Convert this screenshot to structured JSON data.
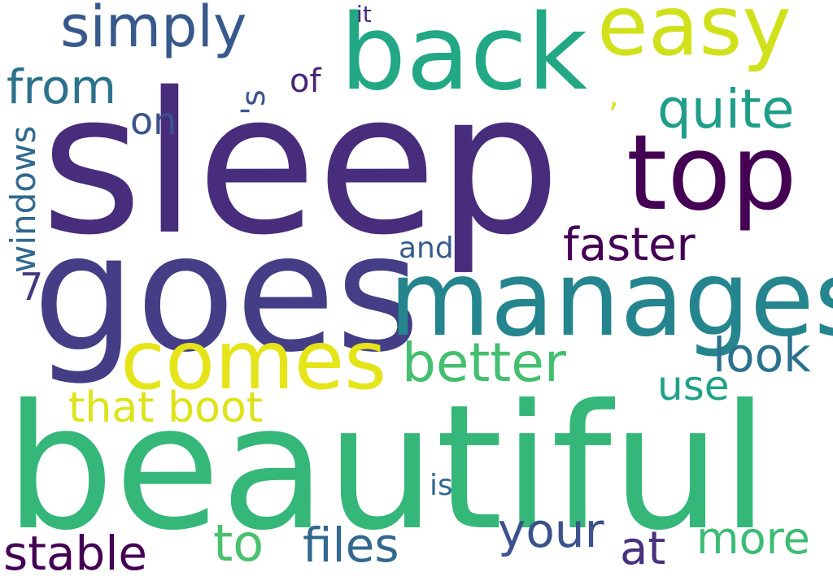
{
  "words": [
    {
      "text": "sleep",
      "color": "#472d7b"
    },
    {
      "text": "beautiful",
      "color": "#35b779"
    },
    {
      "text": "goes",
      "color": "#433e85"
    },
    {
      "text": "manages",
      "color": "#25858e"
    },
    {
      "text": "back",
      "color": "#22a884"
    },
    {
      "text": "top",
      "color": "#440154"
    },
    {
      "text": "easy",
      "color": "#d0e11c"
    },
    {
      "text": "comes",
      "color": "#e5e419"
    },
    {
      "text": "simply",
      "color": "#38598c"
    },
    {
      "text": "better",
      "color": "#44bf70"
    },
    {
      "text": "quite",
      "color": "#1f9e89"
    },
    {
      "text": "faster",
      "color": "#440154"
    },
    {
      "text": "look",
      "color": "#2c728e"
    },
    {
      "text": "from",
      "color": "#2c728e"
    },
    {
      "text": "stable",
      "color": "#440154"
    },
    {
      "text": "files",
      "color": "#31688e"
    },
    {
      "text": "to",
      "color": "#4ac16d"
    },
    {
      "text": "your",
      "color": "#3b528b"
    },
    {
      "text": "more",
      "color": "#3dbc74"
    },
    {
      "text": "at",
      "color": "#46327e"
    },
    {
      "text": "that boot",
      "color": "#dde318"
    },
    {
      "text": "use",
      "color": "#1fa188"
    },
    {
      "text": "windows",
      "color": "#31688e"
    },
    {
      "text": "on",
      "color": "#3b528b"
    },
    {
      "text": "of",
      "color": "#482475"
    },
    {
      "text": "and",
      "color": "#365c8d"
    },
    {
      "text": "is",
      "color": "#31688e"
    },
    {
      "text": "it",
      "color": "#472d7b"
    },
    {
      "text": "'s",
      "color": "#39568c"
    },
    {
      "text": "7",
      "color": "#453781"
    },
    {
      "text": ",",
      "color": "#d2e21b"
    },
    {
      "text": ".",
      "color": "#3b528b"
    }
  ]
}
